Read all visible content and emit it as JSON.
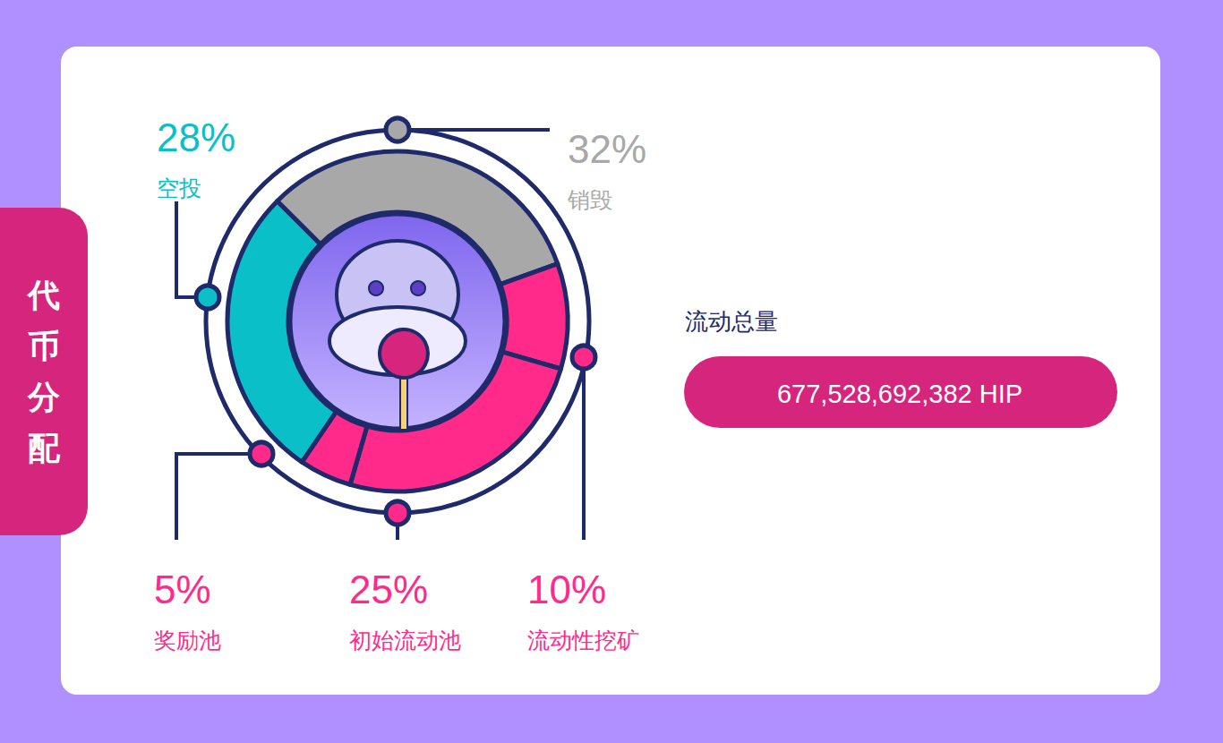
{
  "chart_data": {
    "type": "pie",
    "title": "代币分配",
    "categories": [
      "销毁",
      "流动性挖矿",
      "初始流动池",
      "奖励池",
      "空投"
    ],
    "values": [
      32,
      10,
      25,
      5,
      28
    ],
    "value_labels": [
      "32%",
      "10%",
      "25%",
      "5%",
      "28%"
    ],
    "colors": [
      "#a8a8a8",
      "#ff2a8a",
      "#ff2a8a",
      "#ff2a8a",
      "#0abfc8"
    ],
    "data_labels": true,
    "annotations": [
      "流动总量",
      "677,528,692,382 HIP"
    ]
  }
}
